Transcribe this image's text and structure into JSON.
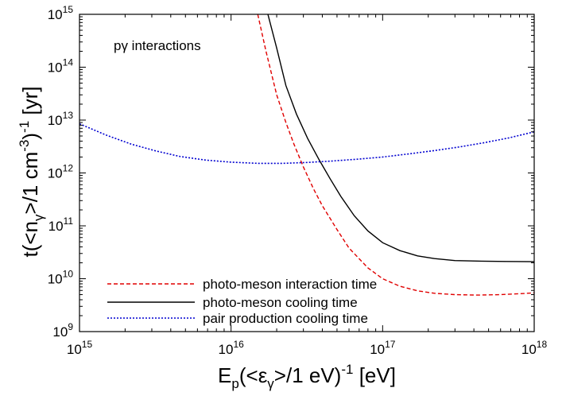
{
  "chart_data": {
    "type": "line",
    "x_scale": "log",
    "y_scale": "log",
    "xlim": [
      1000000000000000.0,
      1e+18
    ],
    "ylim": [
      1000000000.0,
      1000000000000000.0
    ],
    "grid": false,
    "legend_position": "bottom-left",
    "annotation": "pγ interactions",
    "xlabel": {
      "main": "E",
      "sub_p": "p",
      "open": "(<",
      "eps": "ε",
      "sub_gamma": "γ",
      "close": ">/1 eV)",
      "exp": "-1",
      "unit": " [eV]"
    },
    "ylabel": {
      "main": "t(<n",
      "sub_gamma": "γ",
      "mid": ">/1 cm",
      "exp1": "-3",
      "close": ")",
      "exp2": "-1",
      "unit": " [yr]"
    },
    "x_ticks": [
      {
        "value": 1000000000000000.0,
        "base": "10",
        "exp": "15"
      },
      {
        "value": 1e+16,
        "base": "10",
        "exp": "16"
      },
      {
        "value": 1e+17,
        "base": "10",
        "exp": "17"
      },
      {
        "value": 1e+18,
        "base": "10",
        "exp": "18"
      }
    ],
    "y_ticks": [
      {
        "value": 1000000000.0,
        "base": "10",
        "exp": "9"
      },
      {
        "value": 10000000000.0,
        "base": "10",
        "exp": "10"
      },
      {
        "value": 100000000000.0,
        "base": "10",
        "exp": "11"
      },
      {
        "value": 1000000000000.0,
        "base": "10",
        "exp": "12"
      },
      {
        "value": 10000000000000.0,
        "base": "10",
        "exp": "13"
      },
      {
        "value": 100000000000000.0,
        "base": "10",
        "exp": "14"
      },
      {
        "value": 1000000000000000.0,
        "base": "10",
        "exp": "15"
      }
    ],
    "series": [
      {
        "name": "photo-meson interaction time",
        "color": "#e00000",
        "dash": "dashed",
        "x": [
          1.5e+16,
          1.7e+16,
          2e+16,
          2.3e+16,
          2.6e+16,
          3e+16,
          3.5e+16,
          4e+16,
          5e+16,
          6e+16,
          8e+16,
          1e+17,
          1.3e+17,
          1.7e+17,
          2.2e+17,
          3e+17,
          4.2e+17,
          6e+17,
          8e+17,
          1e+18
        ],
        "y": [
          1000000000000000.0,
          200000000000000.0,
          30000000000000.0,
          9000000000000.0,
          3500000000000.0,
          1300000000000.0,
          500000000000.0,
          240000000000.0,
          85000000000.0,
          38000000000.0,
          16000000000.0,
          10000000000.0,
          7200000000.0,
          5900000000.0,
          5300000000.0,
          5000000000.0,
          4900000000.0,
          5000000000.0,
          5200000000.0,
          5400000000.0
        ]
      },
      {
        "name": "photo-meson cooling time",
        "color": "#000000",
        "dash": "solid",
        "x": [
          1.75e+16,
          2e+16,
          2.3e+16,
          2.7e+16,
          3.2e+16,
          3.8e+16,
          4.5e+16,
          5.3e+16,
          6.5e+16,
          8e+16,
          1e+17,
          1.3e+17,
          1.7e+17,
          2.2e+17,
          3e+17,
          4.5e+17,
          6.5e+17,
          1e+18
        ],
        "y": [
          1000000000000000.0,
          230000000000000.0,
          45000000000000.0,
          13000000000000.0,
          4500000000000.0,
          1800000000000.0,
          780000000000.0,
          360000000000.0,
          155000000000.0,
          80000000000.0,
          48000000000.0,
          34000000000.0,
          27000000000.0,
          24000000000.0,
          22000000000.0,
          21500000000.0,
          21200000000.0,
          21000000000.0
        ]
      },
      {
        "name": "pair production cooling time",
        "color": "#0000d0",
        "dash": "dotted",
        "x": [
          1000000000000000.0,
          1500000000000000.0,
          2200000000000000.0,
          3200000000000000.0,
          4600000000000000.0,
          6800000000000000.0,
          1e+16,
          1.5e+16,
          2.2e+16,
          3.2e+16,
          4.6e+16,
          6.8e+16,
          1e+17,
          1.5e+17,
          2.2e+17,
          3.2e+17,
          4.6e+17,
          6.8e+17,
          1e+18
        ],
        "y": [
          8500000000000.0,
          5200000000000.0,
          3500000000000.0,
          2600000000000.0,
          2050000000000.0,
          1750000000000.0,
          1600000000000.0,
          1520000000000.0,
          1520000000000.0,
          1580000000000.0,
          1680000000000.0,
          1820000000000.0,
          2000000000000.0,
          2300000000000.0,
          2650000000000.0,
          3100000000000.0,
          3700000000000.0,
          4600000000000.0,
          6000000000000.0
        ]
      }
    ]
  }
}
